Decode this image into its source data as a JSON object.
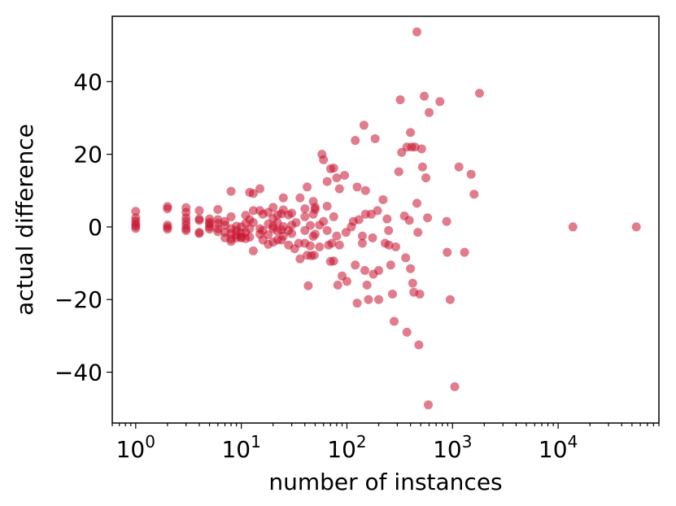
{
  "chart_data": {
    "type": "scatter",
    "title": "",
    "xlabel": "number of instances",
    "ylabel": "actual difference",
    "xscale": "log",
    "xlim": [
      0.6,
      90000
    ],
    "ylim": [
      -54,
      58
    ],
    "grid": false,
    "legend": "none",
    "marker_color": "#c8102e",
    "marker_alpha": 0.55,
    "xticks": [
      {
        "value": 1,
        "base": "10",
        "exp": "0"
      },
      {
        "value": 10,
        "base": "10",
        "exp": "1"
      },
      {
        "value": 100,
        "base": "10",
        "exp": "2"
      },
      {
        "value": 1000,
        "base": "10",
        "exp": "3"
      },
      {
        "value": 10000,
        "base": "10",
        "exp": "4"
      }
    ],
    "yticks": [
      {
        "value": 40,
        "label": "40"
      },
      {
        "value": 20,
        "label": "20"
      },
      {
        "value": 0,
        "label": "0"
      },
      {
        "value": -20,
        "label": "−20"
      },
      {
        "value": -40,
        "label": "−40"
      }
    ],
    "points": [
      [
        1,
        4.3
      ],
      [
        1,
        2.5
      ],
      [
        1,
        1.6
      ],
      [
        1,
        0.8
      ],
      [
        1,
        0.2
      ],
      [
        1,
        -0.4
      ],
      [
        2,
        5.6
      ],
      [
        2,
        5.0
      ],
      [
        2,
        0.5
      ],
      [
        2,
        -0.1
      ],
      [
        2,
        -0.6
      ],
      [
        3,
        5.3
      ],
      [
        3,
        4.0
      ],
      [
        3,
        2.5
      ],
      [
        3,
        1.5
      ],
      [
        3,
        0.5
      ],
      [
        3,
        -0.5
      ],
      [
        3,
        -1.0
      ],
      [
        4,
        4.5
      ],
      [
        4,
        2.2
      ],
      [
        4,
        1.8
      ],
      [
        4,
        -1.5
      ],
      [
        4,
        -1.8
      ],
      [
        5,
        2.2
      ],
      [
        5,
        1.3
      ],
      [
        5,
        0.8
      ],
      [
        5,
        0.0
      ],
      [
        5,
        -0.6
      ],
      [
        6,
        4.8
      ],
      [
        6,
        2.0
      ],
      [
        6,
        1.0
      ],
      [
        6,
        -0.5
      ],
      [
        6,
        -1.3
      ],
      [
        7,
        1.5
      ],
      [
        7,
        0.5
      ],
      [
        7,
        -1.5
      ],
      [
        7,
        -3.0
      ],
      [
        8,
        9.8
      ],
      [
        8,
        2.8
      ],
      [
        8,
        -0.5
      ],
      [
        8,
        -1.8
      ],
      [
        8,
        -3.3
      ],
      [
        8,
        -4.0
      ],
      [
        9,
        0.2
      ],
      [
        9,
        -1.0
      ],
      [
        9,
        -2.2
      ],
      [
        9,
        -3.0
      ],
      [
        10,
        0.0
      ],
      [
        10,
        -1.6
      ],
      [
        10,
        -2.8
      ],
      [
        10,
        -3.0
      ],
      [
        11,
        3.2
      ],
      [
        11,
        1.0
      ],
      [
        11,
        -1.5
      ],
      [
        11,
        -3.2
      ],
      [
        12,
        9.5
      ],
      [
        12,
        2.0
      ],
      [
        12,
        -0.5
      ],
      [
        12,
        -2.8
      ],
      [
        13,
        9.2
      ],
      [
        13,
        4.5
      ],
      [
        13,
        1.2
      ],
      [
        13,
        -6.6
      ],
      [
        15,
        10.5
      ],
      [
        15,
        4.5
      ],
      [
        15,
        -0.5
      ],
      [
        15,
        -2.0
      ],
      [
        16,
        3.5
      ],
      [
        16,
        -1.0
      ],
      [
        16,
        -3.6
      ],
      [
        18,
        4.0
      ],
      [
        18,
        0.8
      ],
      [
        18,
        -2.2
      ],
      [
        18,
        -4.8
      ],
      [
        20,
        5.4
      ],
      [
        20,
        2.3
      ],
      [
        20,
        0.2
      ],
      [
        20,
        -0.5
      ],
      [
        20,
        -4.2
      ],
      [
        22,
        3.3
      ],
      [
        22,
        1.2
      ],
      [
        22,
        -1.2
      ],
      [
        22,
        -3.6
      ],
      [
        24,
        3.6
      ],
      [
        24,
        -0.8
      ],
      [
        24,
        -3.6
      ],
      [
        25,
        8.0
      ],
      [
        25,
        4.7
      ],
      [
        25,
        0.1
      ],
      [
        25,
        -2.5
      ],
      [
        28,
        3.3
      ],
      [
        28,
        -1.0
      ],
      [
        28,
        -5.0
      ],
      [
        30,
        3.8
      ],
      [
        30,
        0.5
      ],
      [
        30,
        -1.8
      ],
      [
        32,
        -6.0
      ],
      [
        33,
        1.2
      ],
      [
        35,
        -4.5
      ],
      [
        36,
        8.0
      ],
      [
        36,
        -8.8
      ],
      [
        40,
        5.0
      ],
      [
        40,
        2.8
      ],
      [
        40,
        -1.0
      ],
      [
        40,
        -4.5
      ],
      [
        42,
        11.0
      ],
      [
        42,
        -7.8
      ],
      [
        43,
        -16.2
      ],
      [
        45,
        0.4
      ],
      [
        45,
        -5.2
      ],
      [
        46,
        -7.9
      ],
      [
        48,
        7.0
      ],
      [
        48,
        3.5
      ],
      [
        48,
        -2.6
      ],
      [
        49,
        -7.8
      ],
      [
        50,
        5.4
      ],
      [
        50,
        4.8
      ],
      [
        50,
        -2.0
      ],
      [
        55,
        0.5
      ],
      [
        55,
        -5.5
      ],
      [
        58,
        20.0
      ],
      [
        60,
        18.5
      ],
      [
        60,
        1.5
      ],
      [
        65,
        12.5
      ],
      [
        65,
        5.7
      ],
      [
        65,
        -1.0
      ],
      [
        67,
        -5.0
      ],
      [
        70,
        16.0
      ],
      [
        70,
        -9.5
      ],
      [
        72,
        -4.5
      ],
      [
        75,
        16.2
      ],
      [
        75,
        2.8
      ],
      [
        75,
        -9.4
      ],
      [
        80,
        13.5
      ],
      [
        80,
        -2.5
      ],
      [
        82,
        -16.0
      ],
      [
        85,
        10.5
      ],
      [
        85,
        -5.0
      ],
      [
        90,
        -13.5
      ],
      [
        95,
        14.2
      ],
      [
        98,
        -1.5
      ],
      [
        100,
        -15.0
      ],
      [
        110,
        0.0
      ],
      [
        115,
        1.5
      ],
      [
        120,
        23.8
      ],
      [
        120,
        -10.5
      ],
      [
        125,
        11.0
      ],
      [
        125,
        -21.0
      ],
      [
        130,
        2.0
      ],
      [
        140,
        -2.5
      ],
      [
        140,
        -4.5
      ],
      [
        145,
        28.0
      ],
      [
        148,
        -12.0
      ],
      [
        150,
        10.0
      ],
      [
        150,
        3.5
      ],
      [
        155,
        -16.0
      ],
      [
        160,
        -20.0
      ],
      [
        170,
        3.5
      ],
      [
        175,
        -3.0
      ],
      [
        178,
        -13.0
      ],
      [
        185,
        24.3
      ],
      [
        195,
        4.5
      ],
      [
        200,
        -12.0
      ],
      [
        200,
        -20.0
      ],
      [
        220,
        7.5
      ],
      [
        230,
        -4.5
      ],
      [
        240,
        2.2
      ],
      [
        248,
        -1.0
      ],
      [
        250,
        -5.0
      ],
      [
        260,
        -10.5
      ],
      [
        270,
        -18.5
      ],
      [
        280,
        -26.0
      ],
      [
        290,
        -5.5
      ],
      [
        310,
        15.2
      ],
      [
        320,
        35.0
      ],
      [
        330,
        20.5
      ],
      [
        350,
        3.0
      ],
      [
        360,
        -8.5
      ],
      [
        370,
        22.0
      ],
      [
        370,
        -29.0
      ],
      [
        390,
        1.8
      ],
      [
        400,
        26.0
      ],
      [
        400,
        -11.5
      ],
      [
        410,
        22.0
      ],
      [
        420,
        -15.5
      ],
      [
        430,
        -18.0
      ],
      [
        440,
        22.0
      ],
      [
        460,
        53.7
      ],
      [
        460,
        6.5
      ],
      [
        470,
        -1.5
      ],
      [
        480,
        -32.5
      ],
      [
        490,
        -18.5
      ],
      [
        510,
        21.5
      ],
      [
        520,
        16.5
      ],
      [
        540,
        36.0
      ],
      [
        560,
        13.5
      ],
      [
        580,
        2.5
      ],
      [
        590,
        -49.0
      ],
      [
        600,
        31.5
      ],
      [
        760,
        34.5
      ],
      [
        880,
        1.5
      ],
      [
        890,
        -7.0
      ],
      [
        950,
        -20.0
      ],
      [
        1050,
        -44.0
      ],
      [
        1150,
        16.5
      ],
      [
        1300,
        -7.0
      ],
      [
        1500,
        14.5
      ],
      [
        1600,
        9.0
      ],
      [
        1800,
        36.8
      ],
      [
        13800,
        0.0
      ],
      [
        55000,
        0.0
      ]
    ]
  }
}
